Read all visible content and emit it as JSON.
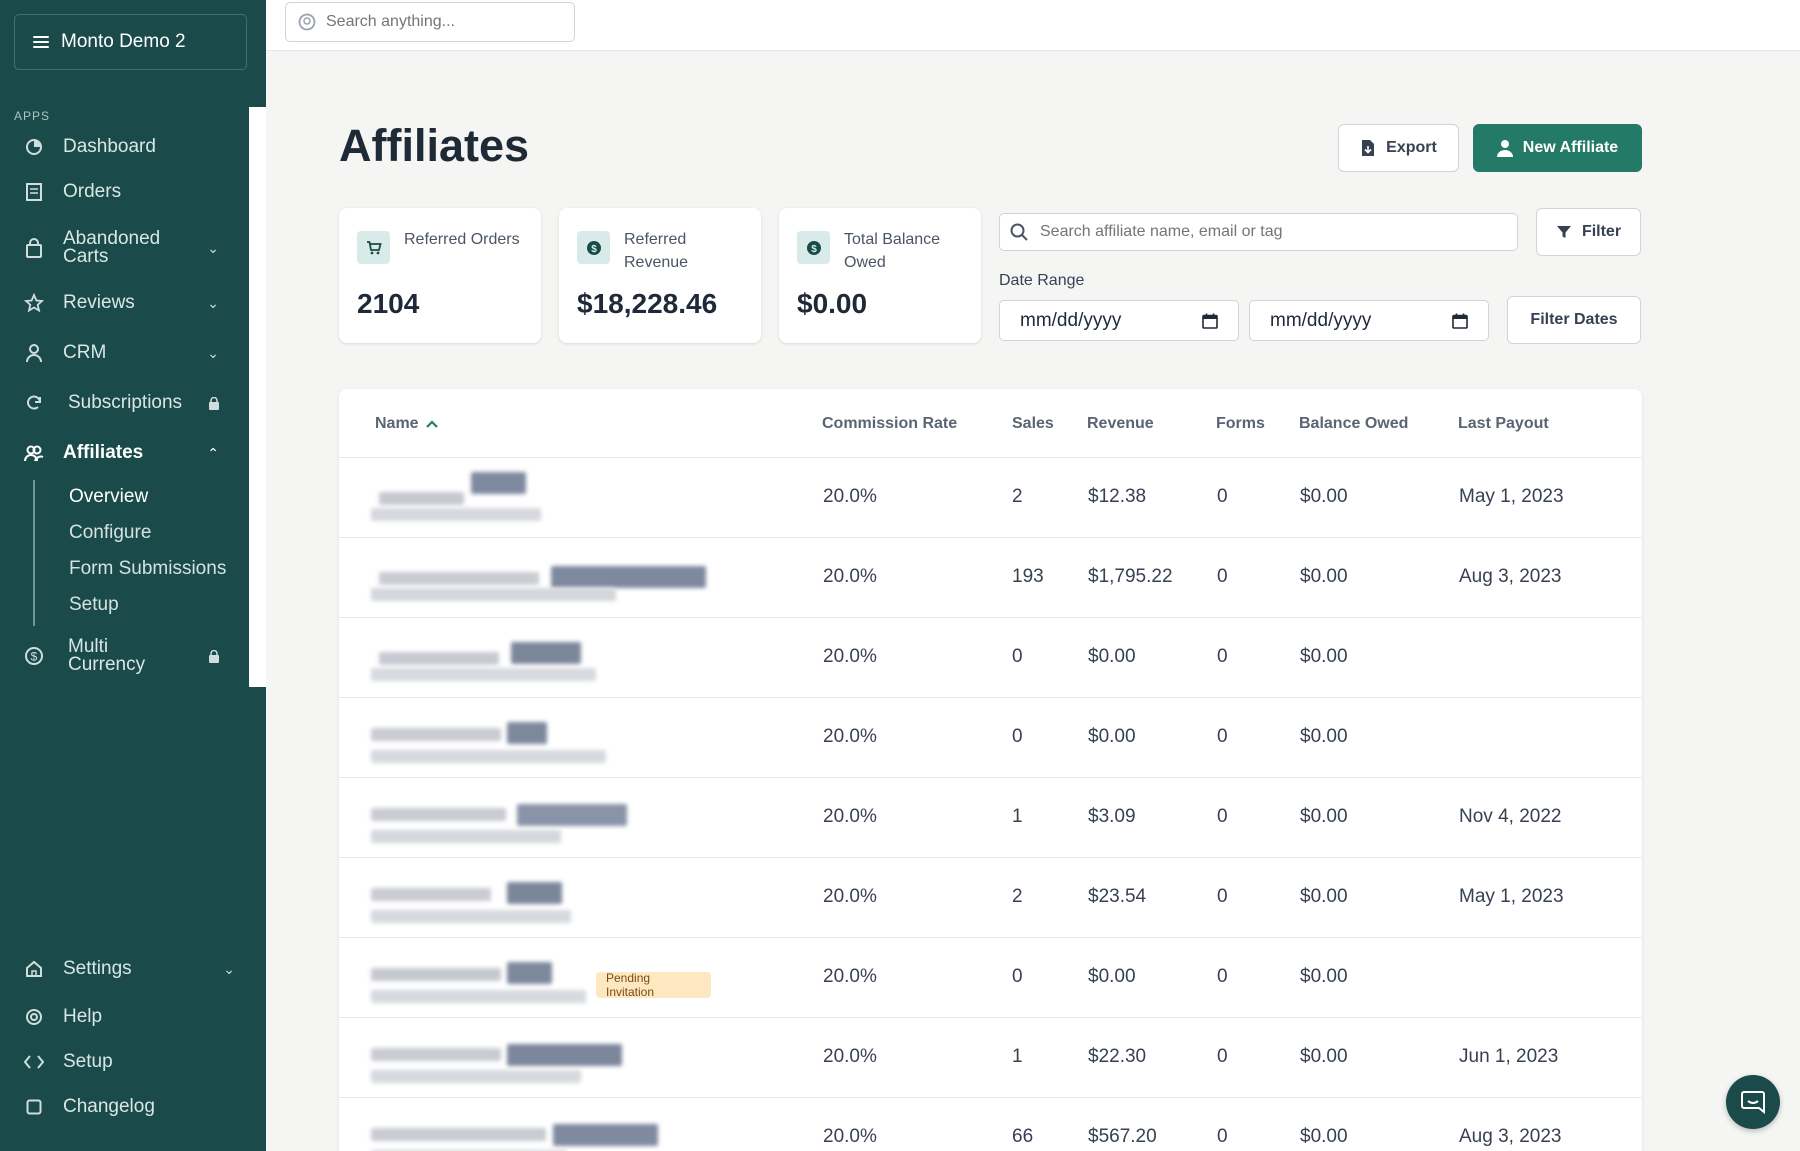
{
  "sidebar": {
    "store_name": "Monto Demo 2",
    "section_label": "APPS",
    "items": [
      {
        "label": "Dashboard",
        "icon": "pie-chart-icon"
      },
      {
        "label": "Orders",
        "icon": "receipt-icon"
      },
      {
        "label": "Abandoned\nCarts",
        "icon": "bag-icon"
      },
      {
        "label": "Reviews",
        "icon": "star-icon"
      },
      {
        "label": "CRM",
        "icon": "user-icon"
      },
      {
        "label": "Subscriptions",
        "icon": "refresh-icon"
      },
      {
        "label": "Affiliates",
        "icon": "users-icon"
      },
      {
        "label": "Multi\nCurrency",
        "icon": "dollar-circle-icon"
      }
    ],
    "sub_items": [
      "Overview",
      "Configure",
      "Form Submissions",
      "Setup"
    ],
    "bottom_items": [
      {
        "label": "Settings",
        "icon": "home-icon"
      },
      {
        "label": "Help",
        "icon": "lifebuoy-icon"
      },
      {
        "label": "Setup",
        "icon": "code-icon"
      },
      {
        "label": "Changelog",
        "icon": "square-icon"
      }
    ]
  },
  "topbar": {
    "search_placeholder": "Search anything..."
  },
  "page": {
    "title": "Affiliates",
    "export_label": "Export",
    "new_affiliate_label": "New Affiliate"
  },
  "stats": [
    {
      "label": "Referred Orders",
      "value": "2104",
      "icon": "cart-icon"
    },
    {
      "label": "Referred Revenue",
      "value": "$18,228.46",
      "icon": "dollar-icon"
    },
    {
      "label": "Total Balance Owed",
      "value": "$0.00",
      "icon": "dollar-icon"
    }
  ],
  "filters": {
    "search_placeholder": "Search affiliate name, email or tag",
    "filter_label": "Filter",
    "date_range_label": "Date Range",
    "date_from_placeholder": "mm/dd/yyyy",
    "date_to_placeholder": "mm/dd/yyyy",
    "filter_dates_label": "Filter Dates"
  },
  "table": {
    "columns": [
      "Name",
      "Commission Rate",
      "Sales",
      "Revenue",
      "Forms",
      "Balance Owed",
      "Last Payout"
    ],
    "rows": [
      {
        "commission": "20.0%",
        "sales": "2",
        "revenue": "$12.38",
        "forms": "0",
        "balance": "$0.00",
        "last_payout": "May 1, 2023",
        "badge": ""
      },
      {
        "commission": "20.0%",
        "sales": "193",
        "revenue": "$1,795.22",
        "forms": "0",
        "balance": "$0.00",
        "last_payout": "Aug 3, 2023",
        "badge": ""
      },
      {
        "commission": "20.0%",
        "sales": "0",
        "revenue": "$0.00",
        "forms": "0",
        "balance": "$0.00",
        "last_payout": "",
        "badge": ""
      },
      {
        "commission": "20.0%",
        "sales": "0",
        "revenue": "$0.00",
        "forms": "0",
        "balance": "$0.00",
        "last_payout": "",
        "badge": ""
      },
      {
        "commission": "20.0%",
        "sales": "1",
        "revenue": "$3.09",
        "forms": "0",
        "balance": "$0.00",
        "last_payout": "Nov 4, 2022",
        "badge": ""
      },
      {
        "commission": "20.0%",
        "sales": "2",
        "revenue": "$23.54",
        "forms": "0",
        "balance": "$0.00",
        "last_payout": "May 1, 2023",
        "badge": ""
      },
      {
        "commission": "20.0%",
        "sales": "0",
        "revenue": "$0.00",
        "forms": "0",
        "balance": "$0.00",
        "last_payout": "",
        "badge": "Pending Invitation"
      },
      {
        "commission": "20.0%",
        "sales": "1",
        "revenue": "$22.30",
        "forms": "0",
        "balance": "$0.00",
        "last_payout": "Jun 1, 2023",
        "badge": ""
      },
      {
        "commission": "20.0%",
        "sales": "66",
        "revenue": "$567.20",
        "forms": "0",
        "balance": "$0.00",
        "last_payout": "Aug 3, 2023",
        "badge": ""
      }
    ]
  },
  "colors": {
    "sidebar_bg": "#1a4b4a",
    "primary": "#237a66",
    "badge_bg": "#fde8c2"
  }
}
